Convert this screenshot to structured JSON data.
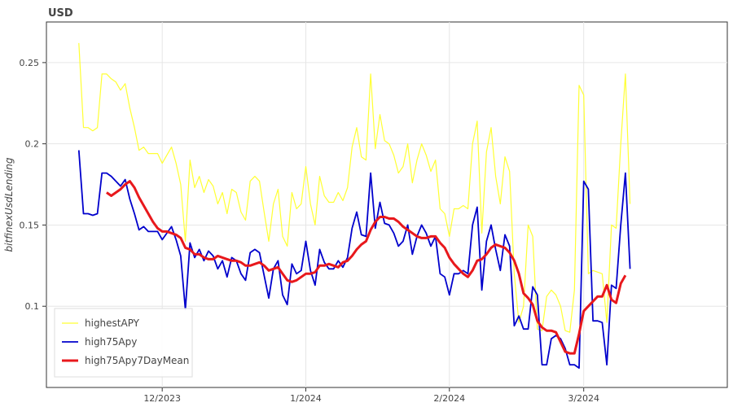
{
  "chart_data": {
    "type": "line",
    "title": "USD",
    "xlabel": "",
    "ylabel": "bitfinexUsdLending",
    "x_start": "2023-11-13",
    "x_end": "2024-03-27",
    "xlim": [
      "2023-11-06",
      "2024-04-01"
    ],
    "ylim": [
      0.05,
      0.275
    ],
    "x_ticks": [
      {
        "label": "12/2023",
        "date": "2023-12-01"
      },
      {
        "label": "1/2024",
        "date": "2024-01-01"
      },
      {
        "label": "2/2024",
        "date": "2024-02-01"
      },
      {
        "label": "3/2024",
        "date": "2024-03-01"
      }
    ],
    "y_ticks": [
      {
        "label": "0.1",
        "value": 0.1
      },
      {
        "label": "0.15",
        "value": 0.15
      },
      {
        "label": "0.2",
        "value": 0.2
      },
      {
        "label": "0.25",
        "value": 0.25
      }
    ],
    "grid": true,
    "legend_position": "bottom-left",
    "series": [
      {
        "name": "highestAPY",
        "color": "#ffff33",
        "values": [
          0.262,
          0.21,
          0.21,
          0.208,
          0.21,
          0.243,
          0.243,
          0.24,
          0.238,
          0.233,
          0.237,
          0.222,
          0.21,
          0.196,
          0.198,
          0.194,
          0.194,
          0.194,
          0.188,
          0.193,
          0.198,
          0.188,
          0.175,
          0.14,
          0.19,
          0.173,
          0.18,
          0.17,
          0.178,
          0.174,
          0.163,
          0.17,
          0.157,
          0.172,
          0.17,
          0.158,
          0.153,
          0.177,
          0.18,
          0.177,
          0.158,
          0.14,
          0.163,
          0.172,
          0.143,
          0.137,
          0.17,
          0.16,
          0.163,
          0.186,
          0.163,
          0.15,
          0.18,
          0.168,
          0.164,
          0.164,
          0.17,
          0.165,
          0.173,
          0.198,
          0.21,
          0.192,
          0.19,
          0.243,
          0.197,
          0.218,
          0.202,
          0.2,
          0.193,
          0.182,
          0.186,
          0.2,
          0.176,
          0.19,
          0.2,
          0.193,
          0.183,
          0.19,
          0.16,
          0.157,
          0.143,
          0.16,
          0.16,
          0.162,
          0.16,
          0.2,
          0.214,
          0.145,
          0.195,
          0.21,
          0.18,
          0.163,
          0.192,
          0.183,
          0.12,
          0.09,
          0.1,
          0.15,
          0.143,
          0.086,
          0.085,
          0.106,
          0.11,
          0.107,
          0.1,
          0.085,
          0.084,
          0.11,
          0.236,
          0.23,
          0.12,
          0.122,
          0.121,
          0.12,
          0.09,
          0.15,
          0.148,
          0.2,
          0.243,
          0.163
        ]
      },
      {
        "name": "high75Apy",
        "color": "#0000cc",
        "values": [
          0.196,
          0.157,
          0.157,
          0.156,
          0.157,
          0.182,
          0.182,
          0.18,
          0.177,
          0.174,
          0.178,
          0.166,
          0.157,
          0.147,
          0.149,
          0.146,
          0.146,
          0.146,
          0.141,
          0.145,
          0.149,
          0.141,
          0.131,
          0.098,
          0.139,
          0.13,
          0.135,
          0.128,
          0.134,
          0.131,
          0.123,
          0.128,
          0.118,
          0.13,
          0.128,
          0.12,
          0.116,
          0.133,
          0.135,
          0.133,
          0.119,
          0.105,
          0.123,
          0.128,
          0.107,
          0.101,
          0.126,
          0.12,
          0.122,
          0.14,
          0.122,
          0.113,
          0.135,
          0.127,
          0.123,
          0.123,
          0.128,
          0.124,
          0.13,
          0.148,
          0.158,
          0.144,
          0.143,
          0.182,
          0.148,
          0.164,
          0.151,
          0.15,
          0.145,
          0.137,
          0.14,
          0.15,
          0.132,
          0.143,
          0.15,
          0.145,
          0.137,
          0.143,
          0.12,
          0.118,
          0.107,
          0.12,
          0.12,
          0.122,
          0.12,
          0.15,
          0.161,
          0.11,
          0.14,
          0.15,
          0.135,
          0.122,
          0.144,
          0.137,
          0.088,
          0.094,
          0.086,
          0.086,
          0.112,
          0.107,
          0.064,
          0.064,
          0.08,
          0.082,
          0.08,
          0.074,
          0.064,
          0.064,
          0.062,
          0.177,
          0.172,
          0.091,
          0.091,
          0.09,
          0.064,
          0.113,
          0.111,
          0.15,
          0.182,
          0.123
        ]
      },
      {
        "name": "high75Apy7DayMean",
        "color": "#e8181c",
        "values": [
          null,
          null,
          null,
          null,
          null,
          null,
          0.17,
          0.168,
          0.17,
          0.172,
          0.175,
          0.177,
          0.173,
          0.167,
          0.162,
          0.157,
          0.152,
          0.148,
          0.146,
          0.146,
          0.145,
          0.144,
          0.142,
          0.136,
          0.135,
          0.132,
          0.132,
          0.13,
          0.129,
          0.129,
          0.131,
          0.13,
          0.129,
          0.128,
          0.128,
          0.127,
          0.125,
          0.125,
          0.126,
          0.127,
          0.125,
          0.122,
          0.123,
          0.124,
          0.12,
          0.116,
          0.115,
          0.116,
          0.118,
          0.12,
          0.12,
          0.121,
          0.125,
          0.125,
          0.126,
          0.125,
          0.124,
          0.127,
          0.128,
          0.131,
          0.135,
          0.138,
          0.14,
          0.147,
          0.152,
          0.155,
          0.155,
          0.154,
          0.154,
          0.152,
          0.149,
          0.147,
          0.145,
          0.143,
          0.142,
          0.142,
          0.143,
          0.143,
          0.139,
          0.136,
          0.13,
          0.126,
          0.123,
          0.12,
          0.118,
          0.122,
          0.128,
          0.129,
          0.132,
          0.136,
          0.138,
          0.137,
          0.136,
          0.133,
          0.128,
          0.12,
          0.108,
          0.105,
          0.101,
          0.091,
          0.087,
          0.085,
          0.085,
          0.084,
          0.078,
          0.072,
          0.071,
          0.071,
          0.083,
          0.097,
          0.1,
          0.103,
          0.106,
          0.106,
          0.113,
          0.104,
          0.102,
          0.114,
          0.119,
          null
        ]
      }
    ]
  }
}
